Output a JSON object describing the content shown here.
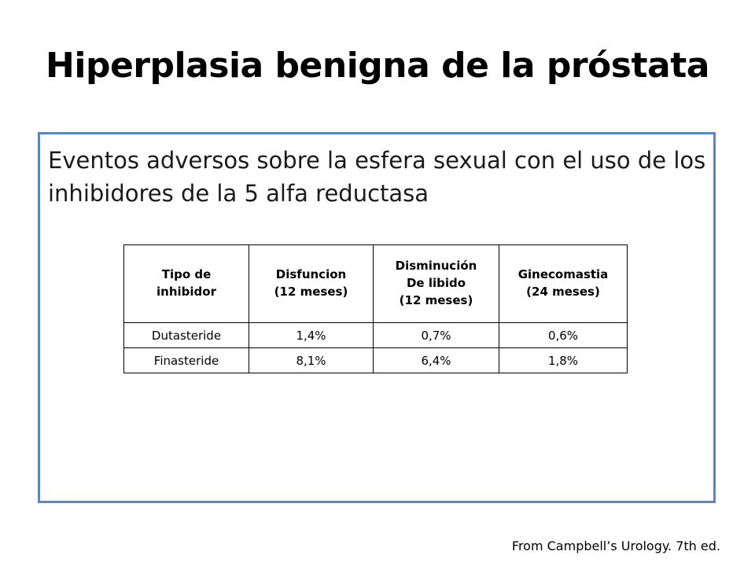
{
  "slide": {
    "title": "Hiperplasia benigna de la próstata",
    "subtitle": "Eventos adversos sobre la esfera sexual con el uso de los inhibidores de la 5 alfa reductasa",
    "source": "From Campbell’s Urology. 7th ed."
  },
  "table": {
    "headers": [
      [
        "Tipo de",
        "inhibidor"
      ],
      [
        "Disfuncion",
        "(12 meses)"
      ],
      [
        "Disminución",
        "De libido",
        "(12 meses)"
      ],
      [
        "Ginecomastia",
        "(24 meses)"
      ]
    ],
    "rows": [
      [
        "Dutasteride",
        "1,4%",
        "0,7%",
        "0,6%"
      ],
      [
        "Finasteride",
        "8,1%",
        "6,4%",
        "1,8%"
      ]
    ]
  },
  "colors": {
    "box_border": "#5b87c5"
  }
}
